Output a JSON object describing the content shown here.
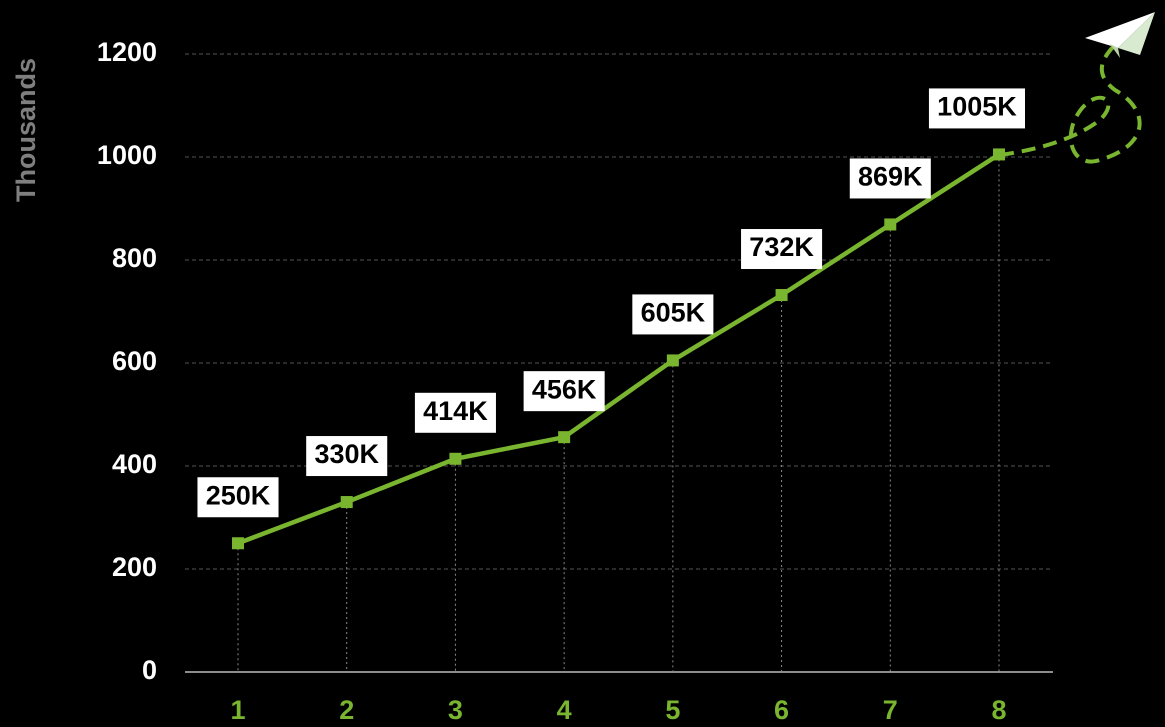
{
  "chart_data": {
    "type": "line",
    "y_label": "Thousands",
    "categories": [
      "1",
      "2",
      "3",
      "4",
      "5",
      "6",
      "7",
      "8"
    ],
    "values": [
      250,
      330,
      414,
      456,
      605,
      732,
      869,
      1005
    ],
    "value_labels": [
      "250K",
      "330K",
      "414K",
      "456K",
      "605K",
      "732K",
      "869K",
      "1005K"
    ],
    "color": "#7ab530",
    "ylim": [
      0,
      1200
    ],
    "yticks": [
      0,
      200,
      400,
      600,
      800,
      1000,
      1200
    ],
    "grid": true
  }
}
